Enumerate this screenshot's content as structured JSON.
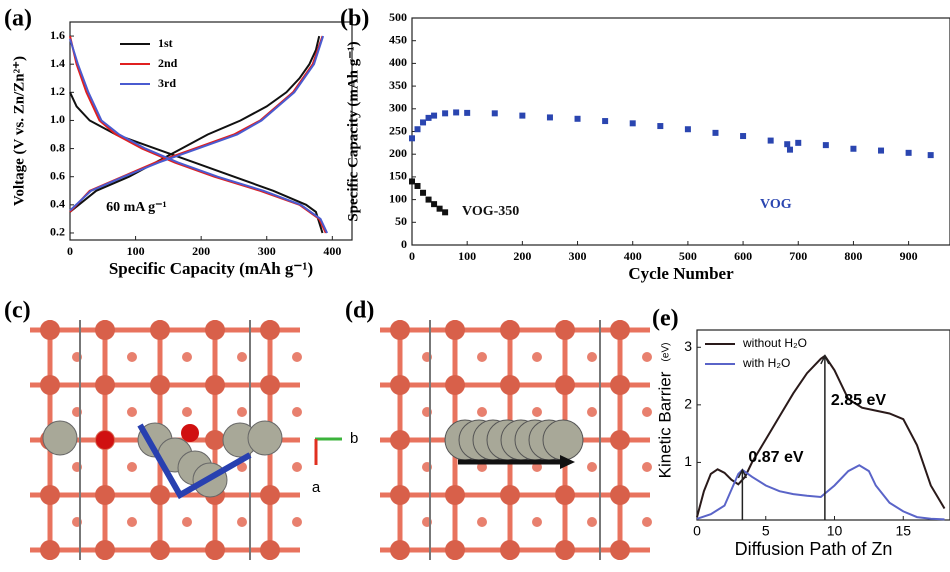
{
  "chart_data": [
    {
      "type": "line",
      "panel_label": "(a)",
      "xlabel": "Specific Capacity (mAh g⁻¹)",
      "ylabel": "Voltage (V vs. Zn/Zn²⁺)",
      "annotation": "60 mA g⁻¹",
      "xlim": [
        0,
        430
      ],
      "ylim": [
        0.15,
        1.7
      ],
      "xticks": [
        0,
        100,
        200,
        300,
        400
      ],
      "yticks": [
        0.2,
        0.4,
        0.6,
        0.8,
        {
          "value": 1,
          "label": "1.0"
        },
        1.2,
        1.4,
        1.6
      ],
      "legend": "upper left",
      "series": [
        {
          "name": "1st",
          "color": "#111111",
          "x": [
            0,
            10,
            30,
            70,
            130,
            190,
            250,
            310,
            360,
            375,
            385,
            null,
            0,
            40,
            90,
            130,
            170,
            210,
            260,
            300,
            330,
            350,
            365,
            375,
            380
          ],
          "values": [
            1.2,
            1.1,
            1.0,
            0.9,
            0.8,
            0.7,
            0.6,
            0.5,
            0.4,
            0.35,
            0.2,
            null,
            0.35,
            0.5,
            0.6,
            0.7,
            0.8,
            0.9,
            1.0,
            1.1,
            1.2,
            1.3,
            1.4,
            1.5,
            1.6
          ]
        },
        {
          "name": "2nd",
          "color": "#e02020",
          "x": [
            0,
            10,
            25,
            45,
            70,
            110,
            160,
            220,
            290,
            350,
            380,
            390,
            null,
            0,
            30,
            80,
            130,
            190,
            250,
            290,
            340,
            370,
            385
          ],
          "values": [
            1.6,
            1.4,
            1.2,
            1.0,
            0.9,
            0.8,
            0.7,
            0.6,
            0.5,
            0.4,
            0.3,
            0.2,
            null,
            0.35,
            0.5,
            0.6,
            0.7,
            0.8,
            0.9,
            1.0,
            1.2,
            1.4,
            1.6
          ]
        },
        {
          "name": "3rd",
          "color": "#4a5bd0",
          "x": [
            0,
            12,
            28,
            48,
            75,
            115,
            165,
            225,
            295,
            352,
            382,
            392,
            null,
            0,
            32,
            82,
            135,
            195,
            255,
            292,
            342,
            372,
            386
          ],
          "values": [
            1.58,
            1.4,
            1.2,
            1.0,
            0.9,
            0.8,
            0.7,
            0.6,
            0.5,
            0.4,
            0.3,
            0.2,
            null,
            0.36,
            0.5,
            0.6,
            0.7,
            0.8,
            0.9,
            1.0,
            1.2,
            1.4,
            1.6
          ]
        }
      ]
    },
    {
      "type": "scatter",
      "panel_label": "(b)",
      "xlabel": "Cycle Number",
      "ylabel": "Specific Capacity (mAh g⁻¹)",
      "xlim": [
        0,
        975
      ],
      "ylim": [
        0,
        500
      ],
      "xticks": [
        0,
        100,
        200,
        300,
        400,
        500,
        600,
        700,
        800,
        900
      ],
      "yticks": [
        0,
        50,
        100,
        150,
        200,
        250,
        300,
        350,
        400,
        450,
        500
      ],
      "series": [
        {
          "name": "VOG",
          "color": "#2a45b0",
          "x": [
            0,
            10,
            20,
            30,
            40,
            60,
            80,
            100,
            150,
            200,
            250,
            300,
            350,
            400,
            450,
            500,
            550,
            600,
            650,
            680,
            685,
            700,
            750,
            800,
            850,
            900,
            940
          ],
          "values": [
            235,
            255,
            270,
            280,
            285,
            290,
            292,
            291,
            290,
            285,
            281,
            278,
            273,
            268,
            262,
            255,
            247,
            240,
            230,
            222,
            210,
            225,
            220,
            212,
            208,
            203,
            198
          ]
        },
        {
          "name": "VOG-350",
          "color": "#111111",
          "x": [
            0,
            10,
            20,
            30,
            40,
            50,
            60
          ],
          "values": [
            140,
            130,
            115,
            100,
            90,
            80,
            72
          ]
        }
      ]
    },
    {
      "type": "line",
      "panel_label": "(e)",
      "xlabel": "Diffusion Path of Zn",
      "ylabel": "Kinetic Barrier",
      "yunit": "(eV)",
      "xlim": [
        0,
        18.4
      ],
      "ylim": [
        0,
        3.3
      ],
      "xticks": [
        0,
        5,
        10,
        15
      ],
      "yticks": [
        1,
        2,
        3
      ],
      "legend": "upper left",
      "series": [
        {
          "name": "without H₂O",
          "color": "#2a1a1a",
          "x": [
            0,
            0.5,
            1,
            1.5,
            2,
            2.5,
            3,
            3.5,
            4,
            5,
            6,
            7,
            8,
            9,
            9.3,
            10,
            11,
            12,
            13,
            14,
            15,
            16,
            17,
            18
          ],
          "values": [
            0.05,
            0.5,
            0.8,
            0.88,
            0.82,
            0.7,
            0.62,
            0.75,
            1.0,
            1.4,
            1.8,
            2.2,
            2.55,
            2.8,
            2.85,
            2.6,
            2.1,
            1.95,
            1.9,
            1.85,
            1.75,
            1.3,
            0.6,
            0.2
          ]
        },
        {
          "name": "with H₂O",
          "color": "#5a64c8",
          "x": [
            0,
            1,
            2,
            3,
            3.3,
            4,
            5,
            6,
            7,
            8,
            9,
            10,
            11,
            11.8,
            12.5,
            13,
            14,
            15,
            16,
            17,
            18
          ],
          "values": [
            0.02,
            0.1,
            0.25,
            0.8,
            0.87,
            0.75,
            0.6,
            0.5,
            0.45,
            0.42,
            0.4,
            0.6,
            0.85,
            0.95,
            0.85,
            0.6,
            0.3,
            0.15,
            0.05,
            0.02,
            0.01
          ]
        }
      ],
      "barriers": [
        {
          "value": 2.85,
          "label": "2.85 eV",
          "x": 9.3
        },
        {
          "value": 0.87,
          "label": "0.87 eV",
          "x": 3.3
        }
      ]
    }
  ],
  "images": [
    {
      "label": "(c)",
      "axes": [
        "b",
        "a"
      ]
    },
    {
      "label": "(d)"
    }
  ]
}
